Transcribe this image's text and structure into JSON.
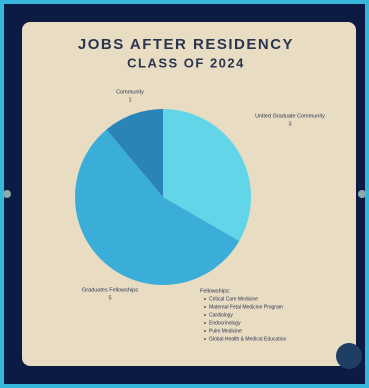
{
  "chart_data": {
    "type": "pie",
    "title": "JOBS AFTER RESIDENCY",
    "subtitle": "CLASS OF 2024",
    "categories": [
      "United Graduate Community",
      "Graduates Fellowships",
      "Community"
    ],
    "values": [
      3,
      5,
      1
    ],
    "colors": [
      "#62d6e8",
      "#3aaed8",
      "#2a84b8"
    ],
    "annotation_title": "Fellowships:",
    "annotation_items": [
      "Critical Care Medicine",
      "Maternal Fetal Medicine Program",
      "Cardiology",
      "Endocrinology",
      "Pulm Medicine",
      "Global Health & Medical Education"
    ]
  }
}
